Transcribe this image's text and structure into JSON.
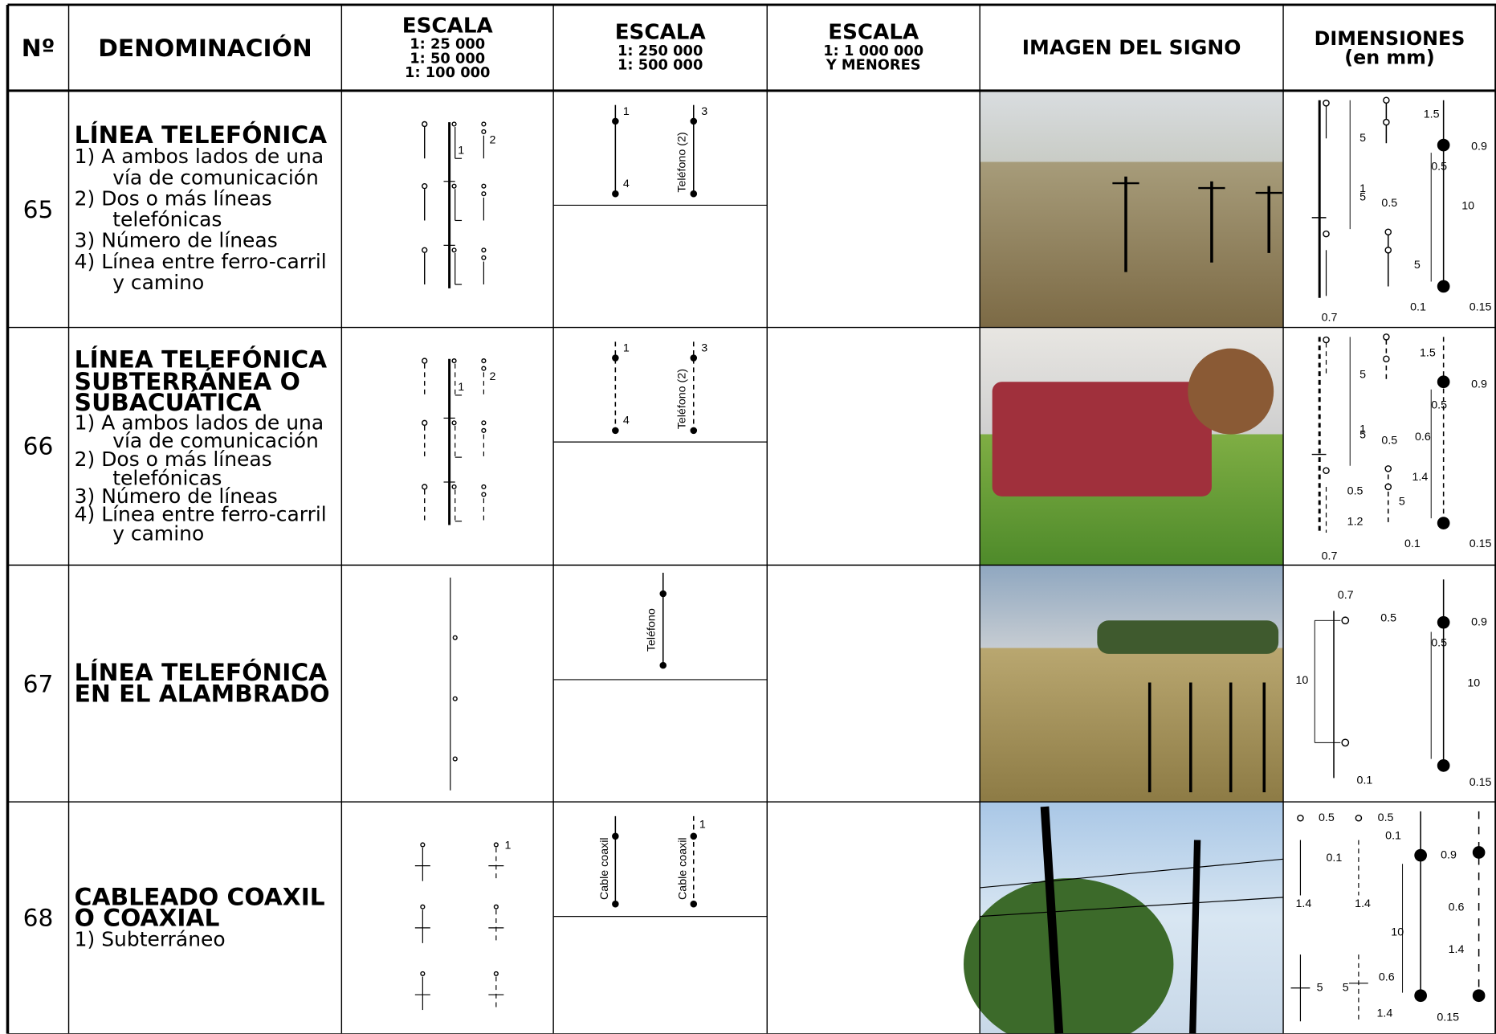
{
  "header": {
    "no": "Nº",
    "denominacion": "DENOMINACIÓN",
    "escala_1": [
      "ESCALA",
      "1: 25 000",
      "1: 50 000",
      "1: 100 000"
    ],
    "escala_2": [
      "ESCALA",
      "1: 250 000",
      "1: 500 000"
    ],
    "escala_3": [
      "ESCALA",
      "1: 1 000 000",
      "Y MENORES"
    ],
    "imagen": "IMAGEN DEL SIGNO",
    "dimensiones": [
      "DIMENSIONES",
      "(en mm)"
    ]
  },
  "rows": [
    {
      "no": "65",
      "title": [
        "LÍNEA TELEFÓNICA"
      ],
      "items": [
        "1) A ambos lados de una vía de comunicación",
        "2) Dos o más líneas telefónicas",
        "3) Número de líneas",
        "4) Línea entre ferro-carril y camino"
      ],
      "large_scale_labels": [
        "1",
        "2"
      ],
      "mid_scale_labels": [
        "1",
        "4",
        "3",
        "Teléfono (2)"
      ],
      "dimensions": [
        "1.5",
        "5",
        "0.9",
        "0.5",
        "1",
        "5",
        "0.5",
        "10",
        "5",
        "0.7",
        "0.1",
        "0.15"
      ]
    },
    {
      "no": "66",
      "title": [
        "LÍNEA TELEFÓNICA",
        "SUBTERRÁNEA O",
        "SUBACUÁTICA"
      ],
      "items": [
        "1) A ambos lados de una vía de comunicación",
        "2) Dos o más líneas telefónicas",
        "3) Número de líneas",
        "4) Línea entre ferro-carril y camino"
      ],
      "large_scale_labels": [
        "1",
        "2"
      ],
      "mid_scale_labels": [
        "1",
        "4",
        "3",
        "Teléfono (2)"
      ],
      "dimensions": [
        "1.5",
        "5",
        "0.9",
        "0.5",
        "1",
        "5",
        "0.5",
        "0.6",
        "1.4",
        "0.5",
        "5",
        "1.2",
        "0.7",
        "0.1",
        "0.15"
      ]
    },
    {
      "no": "67",
      "title": [
        "LÍNEA TELEFÓNICA",
        "EN EL ALAMBRADO"
      ],
      "items": [],
      "large_scale_labels": [],
      "mid_scale_labels": [
        "Teléfono"
      ],
      "dimensions": [
        "0.7",
        "0.5",
        "0.9",
        "0.5",
        "10",
        "10",
        "0.1",
        "0.15"
      ]
    },
    {
      "no": "68",
      "title": [
        "CABLEADO COAXIL",
        "O COAXIAL"
      ],
      "items": [
        "1) Subterráneo"
      ],
      "large_scale_labels": [
        "1"
      ],
      "mid_scale_labels": [
        "Cable coaxil",
        "Cable coaxil",
        "1"
      ],
      "dimensions": [
        "0.5",
        "0.5",
        "0.1",
        "0.1",
        "0.9",
        "1.4",
        "1.4",
        "10",
        "0.6",
        "1.4",
        "5",
        "5",
        "0.6",
        "1.4",
        "0.15"
      ]
    }
  ]
}
